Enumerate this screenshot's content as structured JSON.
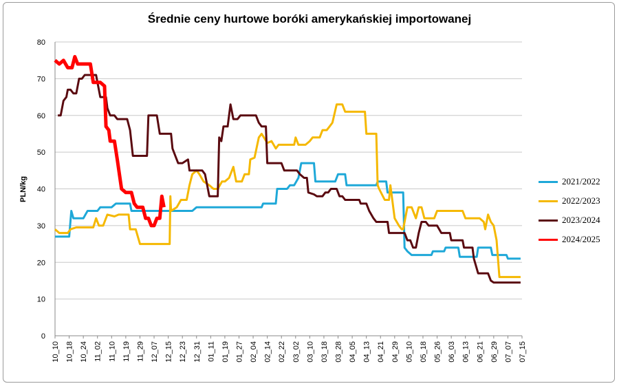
{
  "chart_data": {
    "type": "line",
    "title": "Średnie ceny hurtowe boróki amerykańskiej importowanej",
    "ylabel": "PLN/kg",
    "ylim": [
      0,
      80
    ],
    "yticks": [
      "0",
      "10",
      "20",
      "30",
      "40",
      "50",
      "60",
      "70",
      "80"
    ],
    "xticks": [
      "10_10",
      "10_18",
      "10_24",
      "11_02",
      "11_10",
      "11_19",
      "11_29",
      "12_07",
      "12_15",
      "12_23",
      "12_31",
      "01_11",
      "01_19",
      "01_27",
      "02_04",
      "02_14",
      "02_22",
      "03_02",
      "03_10",
      "03_18",
      "03_28",
      "04_05",
      "04_13",
      "04_21",
      "04_29",
      "05_10",
      "05_18",
      "05_26",
      "06_03",
      "06_13",
      "06_21",
      "06_29",
      "07_07",
      "07_15"
    ],
    "grid": "horizontal",
    "legend_position": "right",
    "series": [
      {
        "name": "2021/2022",
        "color": "#1ea8d8",
        "width": 3,
        "points": [
          [
            0,
            27
          ],
          [
            1,
            27
          ],
          [
            1.15,
            34
          ],
          [
            1.3,
            32
          ],
          [
            2.0,
            32
          ],
          [
            2.3,
            34
          ],
          [
            3.0,
            34
          ],
          [
            3.2,
            35
          ],
          [
            4.0,
            35
          ],
          [
            4.3,
            36
          ],
          [
            5.3,
            36
          ],
          [
            5.4,
            34
          ],
          [
            6.5,
            34
          ],
          [
            7.0,
            34
          ],
          [
            8.0,
            34
          ],
          [
            8.5,
            34
          ],
          [
            9.7,
            34
          ],
          [
            10.0,
            35
          ],
          [
            11.0,
            35
          ],
          [
            12.0,
            35
          ],
          [
            13.0,
            35
          ],
          [
            14.0,
            35
          ],
          [
            14.6,
            35
          ],
          [
            14.7,
            36
          ],
          [
            15.6,
            36
          ],
          [
            15.7,
            40
          ],
          [
            16.4,
            40
          ],
          [
            16.6,
            41
          ],
          [
            16.9,
            41
          ],
          [
            17.2,
            43
          ],
          [
            17.4,
            47
          ],
          [
            18.3,
            47
          ],
          [
            18.4,
            42
          ],
          [
            19.8,
            42
          ],
          [
            20.0,
            44
          ],
          [
            20.5,
            44
          ],
          [
            20.6,
            41
          ],
          [
            22.7,
            41
          ],
          [
            22.8,
            42
          ],
          [
            23.4,
            42
          ],
          [
            23.5,
            39
          ],
          [
            24.6,
            39
          ],
          [
            24.7,
            24
          ],
          [
            24.9,
            23
          ],
          [
            25.2,
            22
          ],
          [
            26.6,
            22
          ],
          [
            26.7,
            23
          ],
          [
            27.5,
            23
          ],
          [
            27.6,
            24
          ],
          [
            28.5,
            24
          ],
          [
            28.6,
            21.5
          ],
          [
            29.8,
            21.5
          ],
          [
            29.9,
            24
          ],
          [
            30.8,
            24
          ],
          [
            30.9,
            22
          ],
          [
            31.9,
            22
          ],
          [
            32.0,
            21
          ],
          [
            32.9,
            21
          ]
        ]
      },
      {
        "name": "2022/2023",
        "color": "#f5b800",
        "width": 3,
        "points": [
          [
            0,
            29
          ],
          [
            0.3,
            28
          ],
          [
            0.9,
            28
          ],
          [
            1.1,
            29
          ],
          [
            1.5,
            29.5
          ],
          [
            2.7,
            29.5
          ],
          [
            2.9,
            32
          ],
          [
            3.1,
            30
          ],
          [
            3.4,
            30
          ],
          [
            3.7,
            33
          ],
          [
            4.2,
            32.5
          ],
          [
            4.5,
            33
          ],
          [
            5.2,
            33
          ],
          [
            5.3,
            29
          ],
          [
            5.7,
            29
          ],
          [
            6.0,
            25
          ],
          [
            6.3,
            25
          ],
          [
            7.1,
            25
          ],
          [
            8.1,
            25
          ],
          [
            8.15,
            38
          ],
          [
            8.2,
            34
          ],
          [
            8.6,
            35
          ],
          [
            8.9,
            37
          ],
          [
            9.3,
            37
          ],
          [
            9.5,
            41
          ],
          [
            9.7,
            44
          ],
          [
            10.0,
            45
          ],
          [
            10.2,
            44
          ],
          [
            10.5,
            42
          ],
          [
            10.9,
            41
          ],
          [
            11.2,
            40
          ],
          [
            11.5,
            40
          ],
          [
            11.8,
            42
          ],
          [
            12.0,
            42
          ],
          [
            12.3,
            43
          ],
          [
            12.6,
            46
          ],
          [
            12.8,
            42
          ],
          [
            13.2,
            42
          ],
          [
            13.4,
            44
          ],
          [
            13.7,
            44
          ],
          [
            13.8,
            48
          ],
          [
            14.1,
            48.5
          ],
          [
            14.4,
            54
          ],
          [
            14.6,
            55
          ],
          [
            15.0,
            52.5
          ],
          [
            15.3,
            53
          ],
          [
            15.6,
            51
          ],
          [
            15.8,
            52
          ],
          [
            16.9,
            52
          ],
          [
            17.0,
            54
          ],
          [
            17.2,
            52
          ],
          [
            17.7,
            52
          ],
          [
            18.0,
            53
          ],
          [
            18.2,
            54
          ],
          [
            18.7,
            54
          ],
          [
            18.9,
            56
          ],
          [
            19.2,
            56
          ],
          [
            19.4,
            57
          ],
          [
            19.6,
            58
          ],
          [
            19.9,
            63
          ],
          [
            20.3,
            63
          ],
          [
            20.5,
            61
          ],
          [
            21.9,
            61
          ],
          [
            22.0,
            55
          ],
          [
            22.7,
            55
          ],
          [
            22.8,
            41
          ],
          [
            22.9,
            40
          ],
          [
            23.3,
            37
          ],
          [
            23.6,
            37
          ],
          [
            23.7,
            41
          ],
          [
            24.0,
            32
          ],
          [
            24.3,
            30
          ],
          [
            24.5,
            29
          ],
          [
            24.6,
            29
          ],
          [
            24.9,
            35
          ],
          [
            25.2,
            35
          ],
          [
            25.5,
            32
          ],
          [
            25.7,
            35
          ],
          [
            25.9,
            35
          ],
          [
            26.1,
            32
          ],
          [
            26.8,
            32
          ],
          [
            27.0,
            34
          ],
          [
            28.8,
            34
          ],
          [
            29.0,
            32
          ],
          [
            30.0,
            32
          ],
          [
            30.3,
            31
          ],
          [
            30.4,
            29
          ],
          [
            30.6,
            33
          ],
          [
            30.8,
            31
          ],
          [
            31.0,
            30
          ],
          [
            31.2,
            26
          ],
          [
            31.4,
            16
          ],
          [
            32.9,
            16
          ]
        ]
      },
      {
        "name": "2023/2024",
        "color": "#5a0a10",
        "width": 3,
        "points": [
          [
            0.2,
            60
          ],
          [
            0.4,
            60
          ],
          [
            0.6,
            64
          ],
          [
            0.8,
            65
          ],
          [
            0.9,
            67
          ],
          [
            1.1,
            67
          ],
          [
            1.3,
            66
          ],
          [
            1.5,
            66
          ],
          [
            1.7,
            70
          ],
          [
            1.9,
            70
          ],
          [
            2.1,
            71
          ],
          [
            2.9,
            71
          ],
          [
            3.0,
            69
          ],
          [
            3.2,
            65
          ],
          [
            3.6,
            65
          ],
          [
            3.7,
            62
          ],
          [
            3.9,
            60
          ],
          [
            4.2,
            60
          ],
          [
            4.4,
            59
          ],
          [
            5.1,
            59
          ],
          [
            5.3,
            56
          ],
          [
            5.5,
            49
          ],
          [
            6.5,
            49
          ],
          [
            6.6,
            60
          ],
          [
            7.2,
            60
          ],
          [
            7.4,
            55
          ],
          [
            8.2,
            55
          ],
          [
            8.3,
            51
          ],
          [
            8.5,
            49
          ],
          [
            8.7,
            47
          ],
          [
            9.0,
            47
          ],
          [
            9.4,
            48
          ],
          [
            9.5,
            45
          ],
          [
            10.4,
            45
          ],
          [
            10.6,
            44
          ],
          [
            10.7,
            42
          ],
          [
            10.9,
            38
          ],
          [
            11.5,
            38
          ],
          [
            11.6,
            54
          ],
          [
            11.75,
            53
          ],
          [
            11.9,
            57
          ],
          [
            12.2,
            57
          ],
          [
            12.4,
            63
          ],
          [
            12.6,
            59
          ],
          [
            12.9,
            59
          ],
          [
            13.1,
            60
          ],
          [
            14.2,
            60
          ],
          [
            14.4,
            58
          ],
          [
            14.6,
            57
          ],
          [
            14.9,
            57
          ],
          [
            15.0,
            47
          ],
          [
            16.0,
            47
          ],
          [
            16.2,
            45
          ],
          [
            17.1,
            45
          ],
          [
            17.3,
            44
          ],
          [
            17.6,
            43
          ],
          [
            17.8,
            43
          ],
          [
            17.9,
            39
          ],
          [
            18.3,
            38.5
          ],
          [
            18.5,
            38
          ],
          [
            18.9,
            38
          ],
          [
            19.1,
            39
          ],
          [
            19.3,
            39
          ],
          [
            19.5,
            40
          ],
          [
            19.9,
            40
          ],
          [
            20.1,
            38
          ],
          [
            20.3,
            38
          ],
          [
            20.5,
            37
          ],
          [
            21.5,
            37
          ],
          [
            21.6,
            36
          ],
          [
            22.0,
            36
          ],
          [
            22.2,
            34
          ],
          [
            22.5,
            32
          ],
          [
            22.7,
            31
          ],
          [
            23.5,
            31
          ],
          [
            23.6,
            28
          ],
          [
            24.7,
            28
          ],
          [
            24.9,
            26
          ],
          [
            25.1,
            26
          ],
          [
            25.3,
            24
          ],
          [
            25.5,
            24
          ],
          [
            25.7,
            28
          ],
          [
            25.9,
            31
          ],
          [
            26.2,
            31
          ],
          [
            26.4,
            30
          ],
          [
            27.0,
            30
          ],
          [
            27.3,
            28
          ],
          [
            27.9,
            28
          ],
          [
            28.0,
            26
          ],
          [
            28.8,
            26
          ],
          [
            28.9,
            24
          ],
          [
            29.5,
            24
          ],
          [
            29.6,
            21
          ],
          [
            29.9,
            17
          ],
          [
            30.6,
            17
          ],
          [
            30.8,
            15
          ],
          [
            31.0,
            14.5
          ],
          [
            32.9,
            14.5
          ]
        ]
      },
      {
        "name": "2024/2025",
        "color": "#ff0000",
        "width": 5,
        "points": [
          [
            0,
            75
          ],
          [
            0.3,
            74
          ],
          [
            0.6,
            75
          ],
          [
            0.9,
            73
          ],
          [
            1.2,
            73
          ],
          [
            1.4,
            76
          ],
          [
            1.6,
            74
          ],
          [
            1.8,
            74
          ],
          [
            2.5,
            74
          ],
          [
            2.7,
            69
          ],
          [
            3.2,
            69
          ],
          [
            3.5,
            68
          ],
          [
            3.6,
            57
          ],
          [
            3.8,
            56
          ],
          [
            3.9,
            53
          ],
          [
            4.2,
            53
          ],
          [
            4.4,
            48
          ],
          [
            4.7,
            40
          ],
          [
            5.0,
            39
          ],
          [
            5.4,
            39
          ],
          [
            5.6,
            36
          ],
          [
            5.8,
            35
          ],
          [
            6.2,
            35
          ],
          [
            6.4,
            32
          ],
          [
            6.6,
            32
          ],
          [
            6.8,
            30
          ],
          [
            7.0,
            30
          ],
          [
            7.2,
            32
          ],
          [
            7.4,
            32
          ],
          [
            7.55,
            38
          ],
          [
            7.7,
            35
          ]
        ]
      }
    ]
  }
}
